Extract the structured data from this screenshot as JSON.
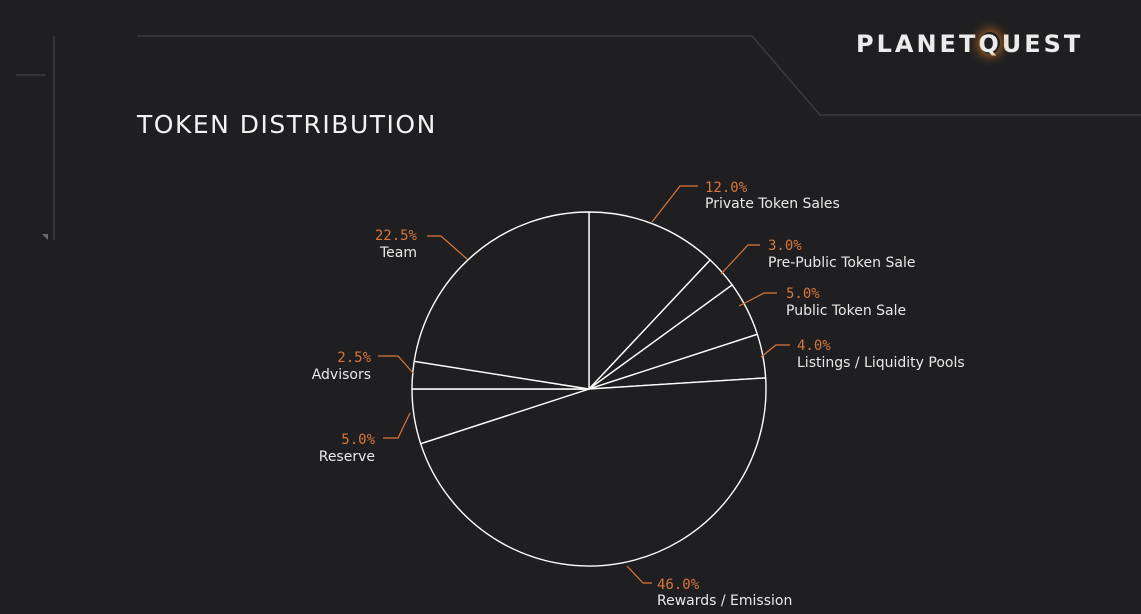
{
  "header": {
    "title": "TOKEN DISTRIBUTION",
    "logo_text": "PLANETQUEST"
  },
  "colors": {
    "background": "#1f1f21",
    "slice_stroke": "#ffffff",
    "percent_label": "#d9763a",
    "leader_line": "#d9763a",
    "category_label": "#e8e8e8",
    "decor_line": "#3c3c40"
  },
  "chart_data": {
    "type": "pie",
    "title": "TOKEN DISTRIBUTION",
    "start": "top",
    "direction": "clockwise",
    "categories": [
      "Private Token Sales",
      "Pre-Public Token Sale",
      "Public Token Sale",
      "Listings / Liquidity Pools",
      "Rewards / Emission",
      "Reserve",
      "Advisors",
      "Team"
    ],
    "values": [
      12.0,
      3.0,
      5.0,
      4.0,
      46.0,
      5.0,
      2.5,
      22.5
    ],
    "percent_labels": [
      "12.0%",
      "3.0%",
      "5.0%",
      "4.0%",
      "46.0%",
      "5.0%",
      "2.5%",
      "22.5%"
    ]
  }
}
